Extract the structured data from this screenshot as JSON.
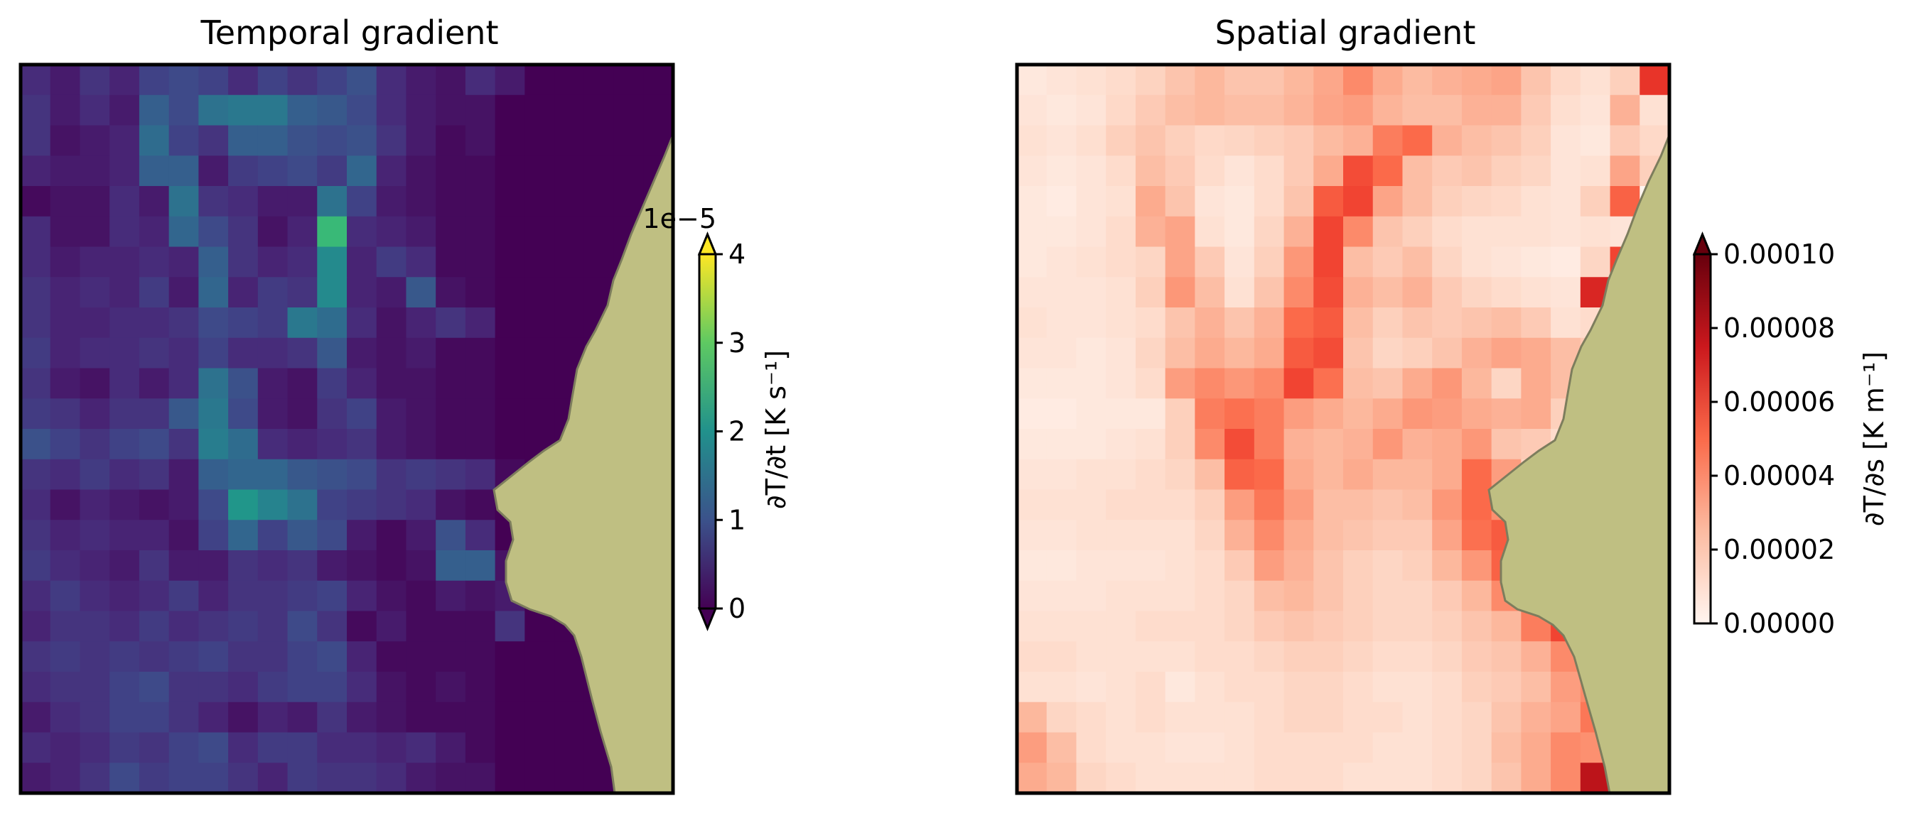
{
  "chart_data": [
    {
      "type": "heatmap",
      "title": "Temporal gradient",
      "colormap": "viridis",
      "colorbar": {
        "label": "∂T/∂t [K s⁻¹]",
        "ticks": [
          0,
          1,
          2,
          3,
          4
        ],
        "tick_labels": [
          "0",
          "1",
          "2",
          "3",
          "4"
        ],
        "offset_text": "1e−5",
        "vmin": 0,
        "vmax": 4,
        "scale": 1e-05,
        "extend": "both"
      },
      "grid_rows": 24,
      "grid_cols": 22,
      "land_color": "#bfbf82",
      "values": [
        [
          0.5,
          0.3,
          0.6,
          0.4,
          0.8,
          0.9,
          0.8,
          0.5,
          0.8,
          0.6,
          0.8,
          1.0,
          0.5,
          0.3,
          0.2,
          0.5,
          0.3,
          0,
          0,
          0,
          0,
          0
        ],
        [
          0.6,
          0.3,
          0.5,
          0.3,
          1.2,
          0.9,
          1.5,
          1.6,
          1.6,
          1.2,
          1.1,
          0.9,
          0.5,
          0.3,
          0.2,
          0.2,
          0,
          0,
          0,
          0,
          0,
          0
        ],
        [
          0.6,
          0.2,
          0.3,
          0.4,
          1.4,
          0.8,
          0.6,
          1.2,
          1.2,
          1.0,
          0.9,
          1.0,
          0.6,
          0.3,
          0.1,
          0.2,
          0,
          0,
          0,
          0,
          0,
          0
        ],
        [
          0.4,
          0.3,
          0.3,
          0.4,
          1.2,
          1.2,
          0.3,
          0.7,
          0.8,
          0.9,
          0.7,
          1.3,
          0.4,
          0.2,
          0.1,
          0.1,
          0,
          0,
          0,
          0,
          0,
          0
        ],
        [
          0.1,
          0.2,
          0.2,
          0.5,
          0.3,
          1.5,
          0.6,
          0.5,
          0.3,
          0.3,
          1.5,
          0.8,
          0.3,
          0.2,
          0.1,
          0.1,
          0,
          0,
          0,
          0,
          0,
          0
        ],
        [
          0.5,
          0.2,
          0.2,
          0.5,
          0.4,
          1.3,
          0.9,
          0.6,
          0.2,
          0.4,
          2.7,
          0.5,
          0.4,
          0.3,
          0.1,
          0.1,
          0,
          0,
          0,
          0,
          0,
          0
        ],
        [
          0.5,
          0.3,
          0.4,
          0.4,
          0.5,
          0.4,
          1.2,
          0.6,
          0.4,
          0.5,
          1.9,
          0.4,
          0.7,
          0.5,
          0.1,
          0.1,
          0,
          0,
          0,
          0,
          0,
          0
        ],
        [
          0.6,
          0.4,
          0.5,
          0.4,
          0.7,
          0.3,
          1.3,
          0.4,
          0.7,
          0.6,
          1.9,
          0.4,
          0.3,
          1.1,
          0.2,
          0.1,
          0,
          0,
          0,
          0,
          0,
          0
        ],
        [
          0.6,
          0.4,
          0.4,
          0.5,
          0.5,
          0.6,
          0.9,
          0.8,
          0.7,
          1.6,
          1.4,
          0.5,
          0.2,
          0.4,
          0.6,
          0.4,
          0,
          0,
          0,
          0,
          0,
          0
        ],
        [
          0.7,
          0.4,
          0.5,
          0.5,
          0.6,
          0.5,
          0.8,
          0.5,
          0.5,
          0.6,
          1.1,
          0.3,
          0.2,
          0.3,
          0.1,
          0.1,
          0,
          0,
          0,
          0,
          0,
          0
        ],
        [
          0.6,
          0.3,
          0.2,
          0.5,
          0.3,
          0.5,
          1.5,
          1.0,
          0.3,
          0.2,
          0.7,
          0.4,
          0.2,
          0.2,
          0.1,
          0.1,
          0,
          0,
          0,
          0,
          0,
          0
        ],
        [
          0.7,
          0.6,
          0.4,
          0.6,
          0.6,
          1.1,
          1.6,
          0.9,
          0.3,
          0.2,
          0.6,
          0.8,
          0.3,
          0.2,
          0.1,
          0.1,
          0,
          0,
          0,
          0,
          0,
          0
        ],
        [
          1.0,
          0.8,
          0.6,
          0.8,
          0.9,
          0.6,
          1.7,
          1.4,
          0.5,
          0.4,
          0.5,
          0.6,
          0.3,
          0.2,
          0.1,
          0.1,
          0,
          0,
          0,
          0,
          0,
          0
        ],
        [
          0.6,
          0.5,
          0.7,
          0.5,
          0.6,
          0.3,
          1.2,
          1.3,
          1.3,
          1.1,
          1.0,
          0.9,
          0.6,
          0.7,
          0.6,
          0.5,
          0.1,
          0,
          0,
          0,
          0,
          0
        ],
        [
          0.5,
          0.2,
          0.4,
          0.3,
          0.2,
          0.3,
          0.9,
          2.1,
          1.8,
          1.5,
          0.8,
          0.7,
          0.6,
          0.5,
          0.2,
          0.1,
          0,
          0,
          0,
          0,
          0,
          0
        ],
        [
          0.6,
          0.4,
          0.5,
          0.4,
          0.4,
          0.2,
          0.8,
          1.3,
          0.8,
          1.1,
          0.9,
          0.3,
          0.1,
          0.3,
          1.0,
          0.5,
          0,
          0,
          0,
          0,
          0,
          0
        ],
        [
          0.7,
          0.5,
          0.4,
          0.3,
          0.6,
          0.3,
          0.3,
          0.6,
          0.5,
          0.6,
          0.3,
          0.2,
          0.1,
          0.2,
          1.2,
          1.2,
          0.2,
          0,
          0,
          0,
          0,
          0
        ],
        [
          0.5,
          0.7,
          0.5,
          0.4,
          0.5,
          0.7,
          0.4,
          0.6,
          0.6,
          0.7,
          0.8,
          0.4,
          0.2,
          0.1,
          0.3,
          0.2,
          0.3,
          0,
          0,
          0,
          0,
          0
        ],
        [
          0.4,
          0.6,
          0.6,
          0.5,
          0.7,
          0.5,
          0.6,
          0.7,
          0.6,
          0.9,
          0.6,
          0.1,
          0.3,
          0.1,
          0.1,
          0.1,
          0.6,
          0,
          0,
          0,
          0,
          0
        ],
        [
          0.6,
          0.7,
          0.6,
          0.7,
          0.6,
          0.7,
          0.8,
          0.6,
          0.6,
          0.8,
          0.9,
          0.4,
          0.1,
          0.1,
          0.1,
          0.1,
          0,
          0,
          0,
          0,
          0,
          0
        ],
        [
          0.5,
          0.6,
          0.6,
          0.8,
          0.9,
          0.6,
          0.6,
          0.5,
          0.7,
          0.8,
          0.8,
          0.5,
          0.2,
          0.1,
          0.2,
          0.1,
          0,
          0,
          0,
          0,
          0,
          0
        ],
        [
          0.3,
          0.5,
          0.6,
          0.8,
          0.8,
          0.6,
          0.4,
          0.2,
          0.4,
          0.3,
          0.6,
          0.3,
          0.2,
          0.1,
          0.1,
          0.1,
          0,
          0,
          0,
          0,
          0,
          0
        ],
        [
          0.5,
          0.4,
          0.5,
          0.7,
          0.6,
          0.8,
          0.9,
          0.5,
          0.7,
          0.7,
          0.5,
          0.5,
          0.4,
          0.5,
          0.3,
          0.1,
          0,
          0,
          0,
          0,
          0,
          0
        ],
        [
          0.3,
          0.4,
          0.6,
          0.9,
          0.7,
          0.8,
          0.8,
          0.6,
          0.4,
          0.7,
          0.6,
          0.6,
          0.5,
          0.3,
          0.2,
          0.2,
          0,
          0,
          0,
          0,
          0,
          0
        ]
      ]
    },
    {
      "type": "heatmap",
      "title": "Spatial gradient",
      "colormap": "Reds",
      "colorbar": {
        "label": "∂T/∂s [K m⁻¹]",
        "ticks": [
          0,
          2e-05,
          4e-05,
          6e-05,
          8e-05,
          0.0001
        ],
        "tick_labels": [
          "0.00000",
          "0.00002",
          "0.00004",
          "0.00006",
          "0.00008",
          "0.00010"
        ],
        "vmin": 0,
        "vmax": 0.0001,
        "scale": 1,
        "extend": "max"
      },
      "grid_rows": 24,
      "grid_cols": 22,
      "land_color": "#bfbf82",
      "values": [
        [
          8e-06,
          1e-05,
          1.2e-05,
          1.4e-05,
          1.7e-05,
          2.2e-05,
          2.6e-05,
          2.2e-05,
          2.2e-05,
          2.6e-05,
          3.1e-05,
          4e-05,
          3e-05,
          2.5e-05,
          2.8e-05,
          3e-05,
          3.2e-05,
          2.2e-05,
          1.5e-05,
          1.2e-05,
          1.8e-05,
          6.5e-05
        ],
        [
          1e-05,
          8e-06,
          1e-05,
          1.5e-05,
          2e-05,
          2.4e-05,
          2.6e-05,
          2.4e-05,
          2.4e-05,
          2.7e-05,
          3.2e-05,
          3.4e-05,
          2.7e-05,
          2.4e-05,
          2.4e-05,
          2.8e-05,
          2.8e-05,
          2e-05,
          1.3e-05,
          1e-05,
          2.8e-05,
          1.2e-05
        ],
        [
          1.2e-05,
          1e-05,
          1.3e-05,
          1.8e-05,
          2.2e-05,
          1.8e-05,
          1.5e-05,
          1.6e-05,
          1.8e-05,
          2e-05,
          2.5e-05,
          2.8e-05,
          4.4e-05,
          5e-05,
          2.8e-05,
          2.4e-05,
          2.2e-05,
          1.8e-05,
          1e-05,
          8e-06,
          2e-05,
          1.5e-05
        ],
        [
          1e-05,
          8e-06,
          1e-05,
          1.4e-05,
          2.4e-05,
          2e-05,
          1.4e-05,
          1e-05,
          1.4e-05,
          2e-05,
          3e-05,
          5.8e-05,
          5e-05,
          2.4e-05,
          2e-05,
          2.2e-05,
          1.8e-05,
          1.6e-05,
          1e-05,
          1.2e-05,
          3.2e-05,
          1.8e-05
        ],
        [
          8e-06,
          6e-06,
          1e-05,
          1.2e-05,
          3e-05,
          2.2e-05,
          1e-05,
          8e-06,
          1.4e-05,
          2.2e-05,
          5.4e-05,
          6e-05,
          3.2e-05,
          2.4e-05,
          1.8e-05,
          1.6e-05,
          1.5e-05,
          1.2e-05,
          1e-05,
          1.8e-05,
          5.2e-05,
          0
        ],
        [
          8e-06,
          8e-06,
          1e-05,
          1.4e-05,
          2.8e-05,
          3.2e-05,
          1.2e-05,
          8e-06,
          1.6e-05,
          2.8e-05,
          6e-05,
          4e-05,
          2.2e-05,
          1.8e-05,
          1.4e-05,
          1.2e-05,
          1.2e-05,
          1.2e-05,
          1e-05,
          1.2e-05,
          1e-05,
          0
        ],
        [
          8e-06,
          1e-05,
          1.2e-05,
          1.4e-05,
          1.6e-05,
          3.2e-05,
          2e-05,
          1e-05,
          1.8e-05,
          3.6e-05,
          6e-05,
          2.4e-05,
          2e-05,
          2.4e-05,
          1.6e-05,
          1.2e-05,
          1e-05,
          8e-06,
          6e-06,
          1.6e-05,
          6e-05,
          0
        ],
        [
          1e-05,
          1e-05,
          1e-05,
          1.2e-05,
          1.8e-05,
          3.6e-05,
          2.4e-05,
          1.2e-05,
          2.2e-05,
          4e-05,
          5.8e-05,
          2.8e-05,
          2.4e-05,
          2.8e-05,
          2e-05,
          1.6e-05,
          1.4e-05,
          1.2e-05,
          1e-05,
          7e-05,
          0.0001,
          0
        ],
        [
          1.2e-05,
          1e-05,
          1e-05,
          1.2e-05,
          1.4e-05,
          2.2e-05,
          2.8e-05,
          2.2e-05,
          2.8e-05,
          5e-05,
          5.4e-05,
          2.4e-05,
          1.8e-05,
          2.2e-05,
          2e-05,
          2.2e-05,
          2.4e-05,
          2e-05,
          1.2e-05,
          1.4e-05,
          0,
          0
        ],
        [
          1e-05,
          1e-05,
          8e-06,
          1e-05,
          1.6e-05,
          2.4e-05,
          3e-05,
          2.6e-05,
          3e-05,
          5.4e-05,
          5.8e-05,
          2.2e-05,
          1.6e-05,
          1.8e-05,
          2.2e-05,
          2.8e-05,
          3.2e-05,
          3e-05,
          2.4e-05,
          2e-05,
          0,
          0
        ],
        [
          8e-06,
          8e-06,
          8e-06,
          1e-05,
          1.4e-05,
          3.4e-05,
          4e-05,
          3.6e-05,
          4e-05,
          6e-05,
          4.8e-05,
          2.4e-05,
          2.2e-05,
          3e-05,
          3.6e-05,
          2.6e-05,
          1.6e-05,
          3e-05,
          2.4e-05,
          0,
          0,
          0
        ],
        [
          6e-06,
          6e-06,
          8e-06,
          8e-06,
          8e-06,
          1.8e-05,
          4.4e-05,
          4.8e-05,
          4.4e-05,
          3.4e-05,
          3e-05,
          2.6e-05,
          3e-05,
          3.6e-05,
          3.4e-05,
          3e-05,
          2.8e-05,
          3e-05,
          1.8e-05,
          0,
          0,
          0
        ],
        [
          8e-06,
          8e-06,
          8e-06,
          1e-05,
          1.2e-05,
          1.8e-05,
          4e-05,
          5.8e-05,
          4.4e-05,
          2.8e-05,
          2.6e-05,
          2.8e-05,
          3.6e-05,
          2.8e-05,
          3e-05,
          3.6e-05,
          2.2e-05,
          2e-05,
          1.4e-05,
          0,
          0,
          0
        ],
        [
          1e-05,
          1e-05,
          1.2e-05,
          1.2e-05,
          1.4e-05,
          1.6e-05,
          2.4e-05,
          5.2e-05,
          5e-05,
          3e-05,
          2.6e-05,
          3e-05,
          2.6e-05,
          2.6e-05,
          3e-05,
          5e-05,
          3.4e-05,
          1.6e-05,
          1e-05,
          0,
          0,
          0
        ],
        [
          1.2e-05,
          1.2e-05,
          1.2e-05,
          1.4e-05,
          1.4e-05,
          1.4e-05,
          1.8e-05,
          3.4e-05,
          4.6e-05,
          3.4e-05,
          2.4e-05,
          2.4e-05,
          2.2e-05,
          2.4e-05,
          3.6e-05,
          5e-05,
          3.8e-05,
          1.4e-05,
          0,
          0,
          0,
          0
        ],
        [
          1e-05,
          1e-05,
          1.2e-05,
          1.2e-05,
          1.2e-05,
          1.2e-05,
          1.6e-05,
          2.8e-05,
          4e-05,
          3e-05,
          2.4e-05,
          2.2e-05,
          2e-05,
          2e-05,
          3.2e-05,
          4.8e-05,
          5.4e-05,
          2.4e-05,
          0,
          0,
          0,
          0
        ],
        [
          8e-06,
          8e-06,
          1e-05,
          1e-05,
          1e-05,
          1.2e-05,
          1.4e-05,
          2e-05,
          3.4e-05,
          2.8e-05,
          2.2e-05,
          1.8e-05,
          1.6e-05,
          1.8e-05,
          2.6e-05,
          3.6e-05,
          5.2e-05,
          4.4e-05,
          0,
          0,
          0,
          0
        ],
        [
          1e-05,
          1e-05,
          1e-05,
          1.2e-05,
          1.2e-05,
          1.2e-05,
          1.4e-05,
          1.6e-05,
          2.4e-05,
          2.6e-05,
          2.2e-05,
          1.8e-05,
          1.6e-05,
          1.6e-05,
          2e-05,
          2.6e-05,
          4e-05,
          4e-05,
          0,
          0,
          0,
          0
        ],
        [
          1.2e-05,
          1.2e-05,
          1.2e-05,
          1.2e-05,
          1.4e-05,
          1.4e-05,
          1.4e-05,
          1.6e-05,
          2e-05,
          2.2e-05,
          2e-05,
          1.8e-05,
          1.6e-05,
          1.6e-05,
          1.8e-05,
          2.2e-05,
          2.6e-05,
          4.4e-05,
          6e-05,
          0,
          0,
          0
        ],
        [
          1.4e-05,
          1.4e-05,
          1.2e-05,
          1.2e-05,
          1.2e-05,
          1.2e-05,
          1.4e-05,
          1.4e-05,
          1.6e-05,
          1.8e-05,
          1.8e-05,
          1.6e-05,
          1.4e-05,
          1.4e-05,
          1.6e-05,
          2e-05,
          2.2e-05,
          2.8e-05,
          4e-05,
          0,
          0,
          0
        ],
        [
          1.2e-05,
          1.2e-05,
          1e-05,
          1.2e-05,
          1.4e-05,
          8e-06,
          1.2e-05,
          1.4e-05,
          1.4e-05,
          1.6e-05,
          1.6e-05,
          1.4e-05,
          1.2e-05,
          1.2e-05,
          1.4e-05,
          1.8e-05,
          2e-05,
          2.4e-05,
          3.4e-05,
          4e-05,
          0,
          0
        ],
        [
          2.6e-05,
          1.6e-05,
          1.4e-05,
          1.2e-05,
          1.4e-05,
          1.2e-05,
          1.2e-05,
          1.2e-05,
          1.4e-05,
          1.6e-05,
          1.6e-05,
          1.4e-05,
          1.4e-05,
          1.2e-05,
          1.4e-05,
          1.6e-05,
          2.2e-05,
          2.8e-05,
          3.2e-05,
          4.6e-05,
          0,
          0
        ],
        [
          3.4e-05,
          2.4e-05,
          1.4e-05,
          1.2e-05,
          1.2e-05,
          1e-05,
          1e-05,
          1.2e-05,
          1.4e-05,
          1.4e-05,
          1.4e-05,
          1.4e-05,
          1.2e-05,
          1.2e-05,
          1.4e-05,
          1.6e-05,
          2.4e-05,
          3e-05,
          4e-05,
          3.8e-05,
          0,
          0
        ],
        [
          3e-05,
          2.6e-05,
          1.6e-05,
          1.4e-05,
          1.2e-05,
          1.2e-05,
          1.2e-05,
          1.2e-05,
          1.4e-05,
          1.4e-05,
          1.4e-05,
          1.2e-05,
          1.2e-05,
          1.2e-05,
          1.4e-05,
          1.6e-05,
          2.2e-05,
          3e-05,
          4e-05,
          8e-05,
          9e-05,
          0
        ]
      ]
    }
  ]
}
